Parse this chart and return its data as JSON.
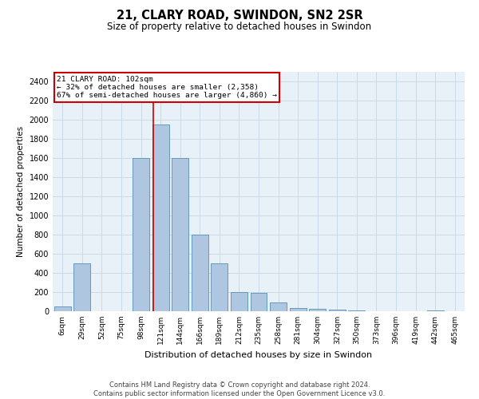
{
  "title": "21, CLARY ROAD, SWINDON, SN2 2SR",
  "subtitle": "Size of property relative to detached houses in Swindon",
  "xlabel": "Distribution of detached houses by size in Swindon",
  "ylabel": "Number of detached properties",
  "footer_line1": "Contains HM Land Registry data © Crown copyright and database right 2024.",
  "footer_line2": "Contains public sector information licensed under the Open Government Licence v3.0.",
  "categories": [
    "6sqm",
    "29sqm",
    "52sqm",
    "75sqm",
    "98sqm",
    "121sqm",
    "144sqm",
    "166sqm",
    "189sqm",
    "212sqm",
    "235sqm",
    "258sqm",
    "281sqm",
    "304sqm",
    "327sqm",
    "350sqm",
    "373sqm",
    "396sqm",
    "419sqm",
    "442sqm",
    "465sqm"
  ],
  "values": [
    50,
    500,
    0,
    0,
    1600,
    1950,
    1600,
    800,
    500,
    200,
    190,
    90,
    35,
    25,
    15,
    5,
    0,
    0,
    0,
    5,
    0
  ],
  "bar_color": "#aec6e0",
  "bar_edge_color": "#6699bb",
  "ylim": [
    0,
    2500
  ],
  "yticks": [
    0,
    200,
    400,
    600,
    800,
    1000,
    1200,
    1400,
    1600,
    1800,
    2000,
    2200,
    2400
  ],
  "property_label": "21 CLARY ROAD: 102sqm",
  "annotation_line1": "← 32% of detached houses are smaller (2,358)",
  "annotation_line2": "67% of semi-detached houses are larger (4,860) →",
  "vline_color": "#cc0000",
  "vline_position": 4.62,
  "annotation_box_color": "#ffffff",
  "annotation_box_edge_color": "#cc0000",
  "grid_color": "#ccd9e8",
  "background_color": "#e8f0f8"
}
